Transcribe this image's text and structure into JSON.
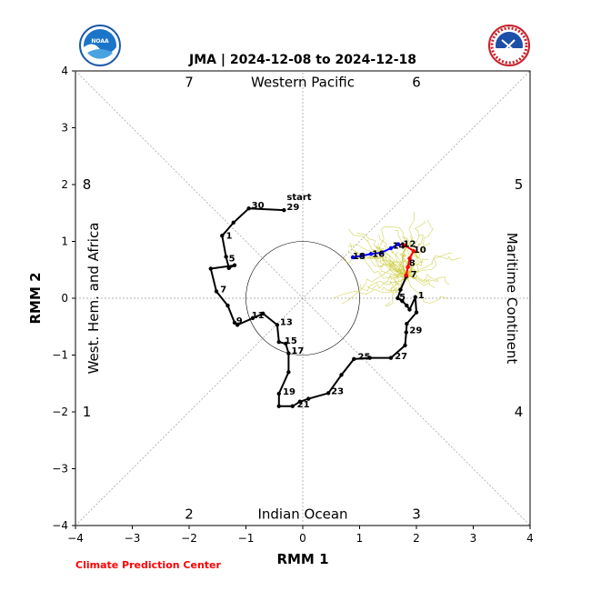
{
  "chart_data": {
    "type": "scatter",
    "title": "JMA | 2024-12-08 to 2024-12-18",
    "xlabel": "RMM 1",
    "ylabel": "RMM 2",
    "xlim": [
      -4,
      4
    ],
    "ylim": [
      -4,
      4
    ],
    "x_ticks": [
      "−4",
      "−3",
      "−2",
      "−1",
      "0",
      "1",
      "2",
      "3",
      "4"
    ],
    "y_ticks": [
      "−4",
      "−3",
      "−2",
      "−1",
      "0",
      "1",
      "2",
      "3",
      "4"
    ],
    "grid": "dashed diagonals and zero lines",
    "unit_circle_radius": 1,
    "phases": [
      {
        "label": "1",
        "x": -3.8,
        "y": -2.0
      },
      {
        "label": "2",
        "x": -2.0,
        "y": -3.8
      },
      {
        "label": "3",
        "x": 2.0,
        "y": -3.8
      },
      {
        "label": "4",
        "x": 3.8,
        "y": -2.0
      },
      {
        "label": "5",
        "x": 3.8,
        "y": 2.0
      },
      {
        "label": "6",
        "x": 2.0,
        "y": 3.8
      },
      {
        "label": "7",
        "x": -2.0,
        "y": 3.8
      },
      {
        "label": "8",
        "x": -3.8,
        "y": 2.0
      }
    ],
    "regions": {
      "top": "Western Pacific",
      "bottom": "Indian Ocean",
      "left": "West. Hem. and Africa",
      "right": "Maritime Continent"
    },
    "series": [
      {
        "color": "#000000",
        "points": [
          {
            "x": -0.33,
            "y": 1.55
          },
          {
            "x": -0.95,
            "y": 1.58
          },
          {
            "x": -1.22,
            "y": 1.33
          },
          {
            "x": -1.42,
            "y": 1.1
          },
          {
            "x": -1.35,
            "y": 0.73
          },
          {
            "x": -1.3,
            "y": 0.53
          },
          {
            "x": -1.2,
            "y": 0.58
          },
          {
            "x": -1.62,
            "y": 0.52
          },
          {
            "x": -1.52,
            "y": 0.12
          },
          {
            "x": -1.32,
            "y": -0.13
          },
          {
            "x": -1.2,
            "y": -0.43
          },
          {
            "x": -1.15,
            "y": -0.47
          },
          {
            "x": -0.88,
            "y": -0.35
          },
          {
            "x": -0.7,
            "y": -0.27
          },
          {
            "x": -0.45,
            "y": -0.47
          },
          {
            "x": -0.42,
            "y": -0.77
          },
          {
            "x": -0.3,
            "y": -0.8
          },
          {
            "x": -0.25,
            "y": -0.97
          },
          {
            "x": -0.25,
            "y": -1.3
          },
          {
            "x": -0.42,
            "y": -1.68
          },
          {
            "x": -0.42,
            "y": -1.9
          },
          {
            "x": -0.18,
            "y": -1.9
          },
          {
            "x": -0.05,
            "y": -1.82
          },
          {
            "x": 0.1,
            "y": -1.77
          },
          {
            "x": 0.45,
            "y": -1.67
          },
          {
            "x": 0.68,
            "y": -1.35
          },
          {
            "x": 0.9,
            "y": -1.07
          },
          {
            "x": 1.18,
            "y": -1.05
          },
          {
            "x": 1.55,
            "y": -1.05
          },
          {
            "x": 1.8,
            "y": -0.83
          },
          {
            "x": 1.82,
            "y": -0.6
          },
          {
            "x": 1.83,
            "y": -0.45
          },
          {
            "x": 2.0,
            "y": -0.25
          },
          {
            "x": 1.98,
            "y": 0.02
          },
          {
            "x": 1.88,
            "y": -0.2
          },
          {
            "x": 1.83,
            "y": -0.13
          },
          {
            "x": 1.75,
            "y": -0.05
          },
          {
            "x": 1.67,
            "y": 0.0
          },
          {
            "x": 1.72,
            "y": 0.15
          },
          {
            "x": 1.82,
            "y": 0.38
          },
          {
            "x": 1.82,
            "y": 0.4
          }
        ]
      },
      {
        "color": "#ff0000",
        "points": [
          {
            "x": 1.82,
            "y": 0.4
          },
          {
            "x": 1.85,
            "y": 0.55
          },
          {
            "x": 1.88,
            "y": 0.7
          },
          {
            "x": 1.95,
            "y": 0.83
          },
          {
            "x": 1.8,
            "y": 0.93
          },
          {
            "x": 1.68,
            "y": 0.95
          }
        ]
      },
      {
        "color": "#0000ff",
        "points": [
          {
            "x": 1.68,
            "y": 0.95
          },
          {
            "x": 1.55,
            "y": 0.88
          },
          {
            "x": 1.38,
            "y": 0.8
          },
          {
            "x": 1.2,
            "y": 0.78
          },
          {
            "x": 1.05,
            "y": 0.75
          },
          {
            "x": 0.88,
            "y": 0.72
          }
        ]
      }
    ],
    "point_labels": [
      {
        "text": "start",
        "x": -0.33,
        "y": 1.78
      },
      {
        "text": "29",
        "x": -0.33,
        "y": 1.6
      },
      {
        "text": "30",
        "x": -0.95,
        "y": 1.63
      },
      {
        "text": "1",
        "x": -1.4,
        "y": 1.1
      },
      {
        "text": "5",
        "x": -1.35,
        "y": 0.7
      },
      {
        "text": "7",
        "x": -1.5,
        "y": 0.15
      },
      {
        "text": "9",
        "x": -1.22,
        "y": -0.4
      },
      {
        "text": "11",
        "x": -0.95,
        "y": -0.3
      },
      {
        "text": "13",
        "x": -0.45,
        "y": -0.42
      },
      {
        "text": "15",
        "x": -0.37,
        "y": -0.75
      },
      {
        "text": "17",
        "x": -0.25,
        "y": -0.93
      },
      {
        "text": "19",
        "x": -0.4,
        "y": -1.65
      },
      {
        "text": "21",
        "x": -0.15,
        "y": -1.87
      },
      {
        "text": "23",
        "x": 0.45,
        "y": -1.64
      },
      {
        "text": "25",
        "x": 0.92,
        "y": -1.03
      },
      {
        "text": "27",
        "x": 1.57,
        "y": -1.02
      },
      {
        "text": "29",
        "x": 1.83,
        "y": -0.57
      },
      {
        "text": "1",
        "x": 1.98,
        "y": 0.05
      },
      {
        "text": "5",
        "x": 1.65,
        "y": 0.02
      },
      {
        "text": "7",
        "x": 1.85,
        "y": 0.42
      },
      {
        "text": "8",
        "x": 1.82,
        "y": 0.62
      },
      {
        "text": "10",
        "x": 1.9,
        "y": 0.85
      },
      {
        "text": "12",
        "x": 1.72,
        "y": 0.95
      },
      {
        "text": "14",
        "x": 1.53,
        "y": 0.92
      },
      {
        "text": "16",
        "x": 1.17,
        "y": 0.78
      },
      {
        "text": "18",
        "x": 0.83,
        "y": 0.74
      }
    ],
    "ensemble_color": "#c8c832"
  },
  "credit": "Climate Prediction Center",
  "logos": {
    "left": "noaa-logo",
    "left_text": "NOAA",
    "right": "national-weather-service-logo",
    "right_text": "NATIONAL WEATHER SERVICE"
  },
  "colors": {
    "observed": "#000000",
    "forecast_red": "#ff0000",
    "forecast_blue": "#0000ff",
    "ensemble": "#c8c832",
    "credit": "#ff0000"
  }
}
